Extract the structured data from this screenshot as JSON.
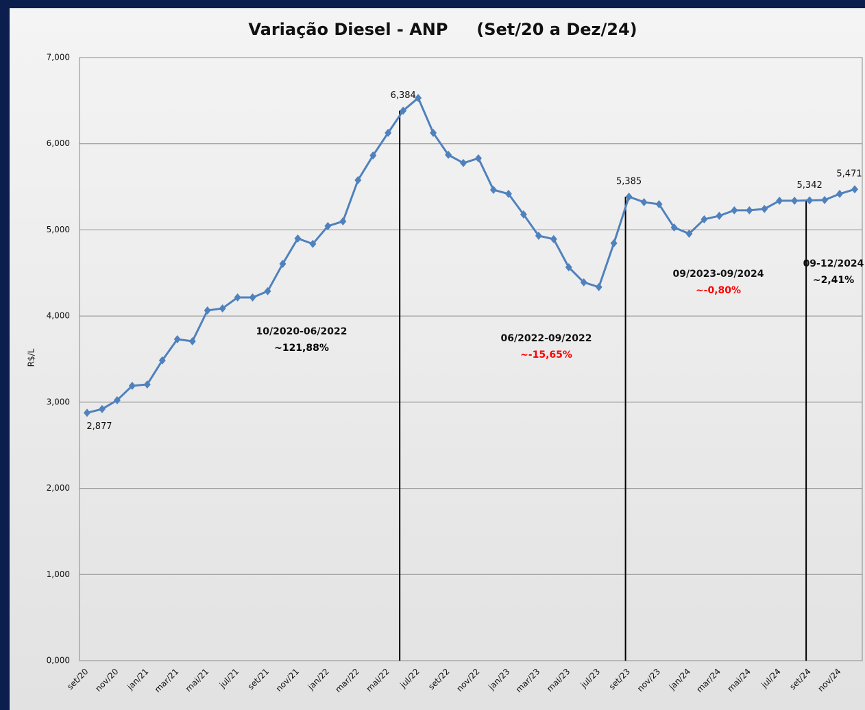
{
  "chart_data": {
    "type": "line",
    "title": "Variação Diesel - ANP     (Set/20 a Dez/24)",
    "y_label": "R$/L",
    "categories": [
      "set/20",
      null,
      "nov/20",
      null,
      "jan/21",
      null,
      "mar/21",
      null,
      "mai/21",
      null,
      "jul/21",
      null,
      "set/21",
      null,
      "nov/21",
      null,
      "jan/22",
      null,
      "mar/22",
      null,
      "mai/22",
      null,
      "jul/22",
      null,
      "set/22",
      null,
      "nov/22",
      null,
      "jan/23",
      null,
      "mar/23",
      null,
      "mai/23",
      null,
      "jul/23",
      null,
      "set/23",
      null,
      "nov/23",
      null,
      "jan/24",
      null,
      "mar/24",
      null,
      "mai/24",
      null,
      "jul/24",
      null,
      "set/24",
      null,
      "nov/24",
      null
    ],
    "series": [
      {
        "name": "Diesel",
        "color": "#4f81bd",
        "values": [
          2877,
          2920,
          3023,
          3190,
          3206,
          3485,
          3731,
          3707,
          4065,
          4089,
          4216,
          4216,
          4288,
          4606,
          4900,
          4837,
          5044,
          5099,
          5577,
          5863,
          6126,
          6384,
          6531,
          6126,
          5871,
          5776,
          5831,
          5465,
          5418,
          5179,
          4932,
          4893,
          4566,
          4391,
          4336,
          4845,
          5385,
          5322,
          5298,
          5028,
          4956,
          5123,
          5163,
          5227,
          5227,
          5243,
          5338,
          5338,
          5342,
          5346,
          5418,
          5471
        ],
        "value_labels": [
          "2,877",
          null,
          null,
          null,
          null,
          null,
          null,
          null,
          null,
          null,
          null,
          null,
          null,
          null,
          null,
          null,
          null,
          null,
          null,
          null,
          null,
          "6,384",
          null,
          null,
          null,
          null,
          null,
          null,
          null,
          null,
          null,
          null,
          null,
          null,
          null,
          null,
          "5,385",
          null,
          null,
          null,
          null,
          null,
          null,
          null,
          null,
          null,
          null,
          null,
          "5,342",
          null,
          null,
          "5,471"
        ]
      }
    ],
    "ylim": [
      0,
      7000
    ],
    "yticks": [
      {
        "value": 0,
        "label": "0,000"
      },
      {
        "value": 1000,
        "label": "1,000"
      },
      {
        "value": 2000,
        "label": "2,000"
      },
      {
        "value": 3000,
        "label": "3,000"
      },
      {
        "value": 4000,
        "label": "4,000"
      },
      {
        "value": 5000,
        "label": "5,000"
      },
      {
        "value": 6000,
        "label": "6,000"
      },
      {
        "value": 7000,
        "label": "7,000"
      }
    ],
    "grid": true,
    "annotations": [
      {
        "period": "10/2020-06/2022",
        "change": "~121,88%",
        "color": "#000000"
      },
      {
        "period": "06/2022-09/2022",
        "change": "~-15,65%",
        "color": "#ff0000"
      },
      {
        "period": "09/2023-09/2024",
        "change": "~-0,80%",
        "color": "#ff0000"
      },
      {
        "period": "09-12/2024",
        "change": "~2,41%",
        "color": "#000000"
      }
    ]
  }
}
